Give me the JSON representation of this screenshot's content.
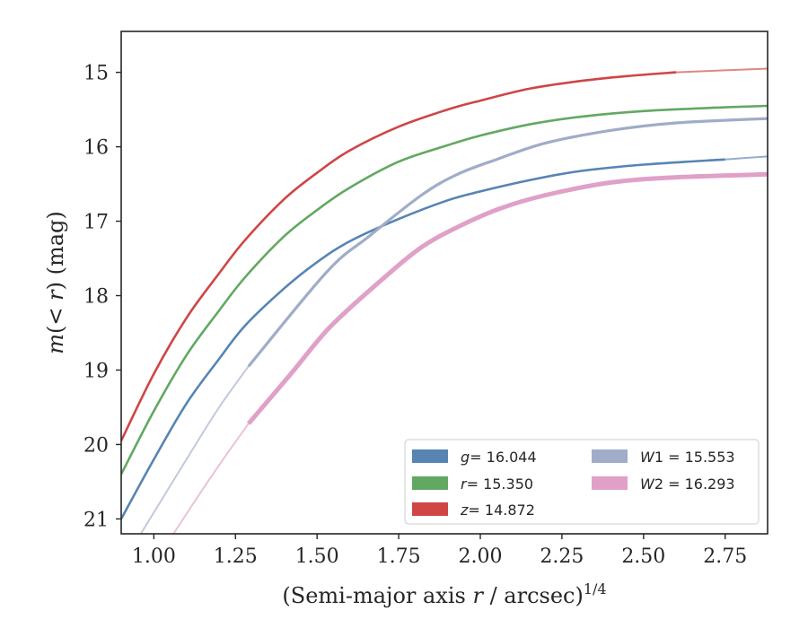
{
  "chart_data": {
    "type": "line",
    "xlabel_main": "(Semi-major axis ",
    "xlabel_var": "r",
    "xlabel_unit": " / arcsec)",
    "xlabel_exp": "1/4",
    "ylabel_main": "m",
    "ylabel_mid": "(< ",
    "ylabel_var": "r",
    "ylabel_tail": ") (mag)",
    "xlim": [
      0.9,
      2.88
    ],
    "ylim": [
      21.2,
      14.45
    ],
    "y_inverted": true,
    "x_ticks": [
      1.0,
      1.25,
      1.5,
      1.75,
      2.0,
      2.25,
      2.5,
      2.75
    ],
    "x_tick_labels": [
      "1.00",
      "1.25",
      "1.50",
      "1.75",
      "2.00",
      "2.25",
      "2.50",
      "2.75"
    ],
    "y_ticks": [
      15,
      16,
      17,
      18,
      19,
      20,
      21
    ],
    "y_tick_labels": [
      "15",
      "16",
      "17",
      "18",
      "19",
      "20",
      "21"
    ],
    "grid": false,
    "legend_position": "lower-right",
    "legend_columns": 2,
    "series": [
      {
        "name": "g = 16.044",
        "legend_var": "g",
        "legend_value": "= 16.044",
        "color": "#5784b3",
        "points": [
          [
            0.9,
            21.0
          ],
          [
            1.0,
            20.2
          ],
          [
            1.1,
            19.45
          ],
          [
            1.2,
            18.85
          ],
          [
            1.28,
            18.4
          ],
          [
            1.4,
            17.9
          ],
          [
            1.5,
            17.55
          ],
          [
            1.6,
            17.27
          ],
          [
            1.75,
            16.97
          ],
          [
            1.9,
            16.72
          ],
          [
            2.0,
            16.6
          ],
          [
            2.15,
            16.45
          ],
          [
            2.3,
            16.33
          ],
          [
            2.5,
            16.24
          ],
          [
            2.75,
            16.17
          ]
        ],
        "extension": [
          [
            2.75,
            16.17
          ],
          [
            2.88,
            16.13
          ]
        ]
      },
      {
        "name": "r = 15.350",
        "legend_var": "r",
        "legend_value": "= 15.350",
        "color": "#62a862",
        "points": [
          [
            0.9,
            20.4
          ],
          [
            1.0,
            19.55
          ],
          [
            1.1,
            18.8
          ],
          [
            1.2,
            18.2
          ],
          [
            1.28,
            17.75
          ],
          [
            1.4,
            17.2
          ],
          [
            1.5,
            16.85
          ],
          [
            1.6,
            16.55
          ],
          [
            1.75,
            16.2
          ],
          [
            1.9,
            15.98
          ],
          [
            2.0,
            15.85
          ],
          [
            2.15,
            15.7
          ],
          [
            2.3,
            15.6
          ],
          [
            2.5,
            15.52
          ],
          [
            2.75,
            15.47
          ],
          [
            2.88,
            15.45
          ]
        ],
        "extension": []
      },
      {
        "name": "z = 14.872",
        "legend_var": "z",
        "legend_value": "= 14.872",
        "color": "#d04545",
        "points": [
          [
            0.9,
            19.95
          ],
          [
            1.0,
            19.05
          ],
          [
            1.1,
            18.3
          ],
          [
            1.2,
            17.7
          ],
          [
            1.28,
            17.25
          ],
          [
            1.4,
            16.7
          ],
          [
            1.5,
            16.35
          ],
          [
            1.6,
            16.05
          ],
          [
            1.75,
            15.73
          ],
          [
            1.9,
            15.5
          ],
          [
            2.0,
            15.38
          ],
          [
            2.15,
            15.22
          ],
          [
            2.3,
            15.12
          ],
          [
            2.45,
            15.05
          ],
          [
            2.6,
            15.0
          ]
        ],
        "extension": [
          [
            2.6,
            15.0
          ],
          [
            2.88,
            14.95
          ]
        ]
      },
      {
        "name": "W1 = 15.553",
        "legend_var": "W",
        "legend_value": "1 = 15.553",
        "color": "#a0acc8",
        "points": [
          [
            1.29,
            18.95
          ],
          [
            1.53,
            17.68
          ],
          [
            1.66,
            17.2
          ],
          [
            1.82,
            16.65
          ],
          [
            1.93,
            16.37
          ],
          [
            2.05,
            16.17
          ],
          [
            2.2,
            15.95
          ],
          [
            2.4,
            15.78
          ],
          [
            2.6,
            15.68
          ],
          [
            2.88,
            15.62
          ]
        ],
        "extension": [
          [
            0.96,
            21.2
          ],
          [
            1.1,
            20.2
          ],
          [
            1.2,
            19.5
          ],
          [
            1.29,
            18.95
          ]
        ]
      },
      {
        "name": "W2 = 16.293",
        "legend_var": "W",
        "legend_value": "2 = 16.293",
        "color": "#e0a0c8",
        "points": [
          [
            1.29,
            19.72
          ],
          [
            1.42,
            19.05
          ],
          [
            1.54,
            18.42
          ],
          [
            1.7,
            17.78
          ],
          [
            1.82,
            17.35
          ],
          [
            1.93,
            17.08
          ],
          [
            2.06,
            16.83
          ],
          [
            2.2,
            16.65
          ],
          [
            2.4,
            16.48
          ],
          [
            2.6,
            16.41
          ],
          [
            2.88,
            16.37
          ]
        ],
        "extension": [
          [
            1.06,
            21.2
          ],
          [
            1.15,
            20.6
          ],
          [
            1.22,
            20.15
          ],
          [
            1.29,
            19.72
          ]
        ]
      }
    ]
  }
}
